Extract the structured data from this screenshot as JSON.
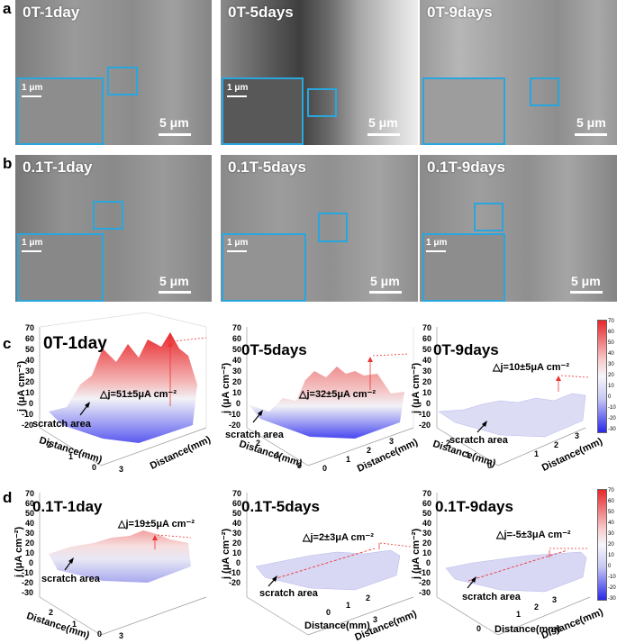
{
  "row_labels": {
    "a": "a",
    "b": "b",
    "c": "c",
    "d": "d"
  },
  "sem_a": [
    {
      "title": "0T-1day",
      "scale": "5 μm",
      "inset_scale": "1 μm"
    },
    {
      "title": "0T-5days",
      "scale": "5 μm",
      "inset_scale": "1 μm"
    },
    {
      "title": "0T-9days",
      "scale": "5 μm",
      "inset_scale": "1 μm"
    }
  ],
  "sem_b": [
    {
      "title": "0.1T-1day",
      "scale": "5 μm",
      "inset_scale": "1 μm"
    },
    {
      "title": "0.1T-5days",
      "scale": "5 μm",
      "inset_scale": "1 μm"
    },
    {
      "title": "0.1T-9days",
      "scale": "5 μm",
      "inset_scale": "1 μm"
    }
  ],
  "plots_c": [
    {
      "title": "0T-1day",
      "delta": "△j=51±5μA cm⁻²",
      "scratch": "scratch area",
      "ylabel": "j (μA cm⁻²)",
      "xlabel": "Distance(mm)",
      "zlabel": "Distance(mm)"
    },
    {
      "title": "0T-5days",
      "delta": "△j=32±5μA cm⁻²",
      "scratch": "scratch area",
      "ylabel": "j (μA cm⁻²)",
      "xlabel": "Distance(mm)",
      "zlabel": "Distance(mm)"
    },
    {
      "title": "0T-9days",
      "delta": "△j=10±5μA cm⁻²",
      "scratch": "scratch area",
      "ylabel": "j (μA cm⁻²)",
      "xlabel": "Distance(mm)",
      "zlabel": "Distance(mm)"
    }
  ],
  "plots_d": [
    {
      "title": "0.1T-1day",
      "delta": "△j=19±5μA cm⁻²",
      "scratch": "scratch area",
      "ylabel": "j (μA cm⁻²)",
      "xlabel": "Distance(mm)",
      "zlabel": "Distance(mm)"
    },
    {
      "title": "0.1T-5days",
      "delta": "△j=2±3μA cm⁻²",
      "scratch": "scratch area",
      "ylabel": "j (μA cm⁻²)",
      "xlabel": "Distance(mm)",
      "zlabel": "Distance(mm)"
    },
    {
      "title": "0.1T-9days",
      "delta": "△j=-5±3μA cm⁻²",
      "scratch": "scratch area",
      "ylabel": "j (μA cm⁻²)",
      "xlabel": "Distance(mm)",
      "zlabel": "Distance(mm)"
    }
  ],
  "yticks_c": [
    "70",
    "60",
    "50",
    "40",
    "30",
    "20",
    "10",
    "0",
    "-10",
    "-20"
  ],
  "yticks_d": [
    "70",
    "60",
    "50",
    "40",
    "30",
    "20",
    "10",
    "0",
    "-10",
    "-20",
    "-30"
  ],
  "xticks": [
    "0",
    "1",
    "2"
  ],
  "zticks": [
    "0",
    "1",
    "2",
    "3"
  ],
  "colorbar_ticks": [
    "70",
    "60",
    "50",
    "40",
    "30",
    "20",
    "10",
    "0",
    "-10",
    "-20",
    "-30"
  ],
  "colors": {
    "inset_border": "#29a6dd",
    "high": "#e8262a",
    "low": "#3a3af0",
    "neutral": "#f2f2f7"
  }
}
